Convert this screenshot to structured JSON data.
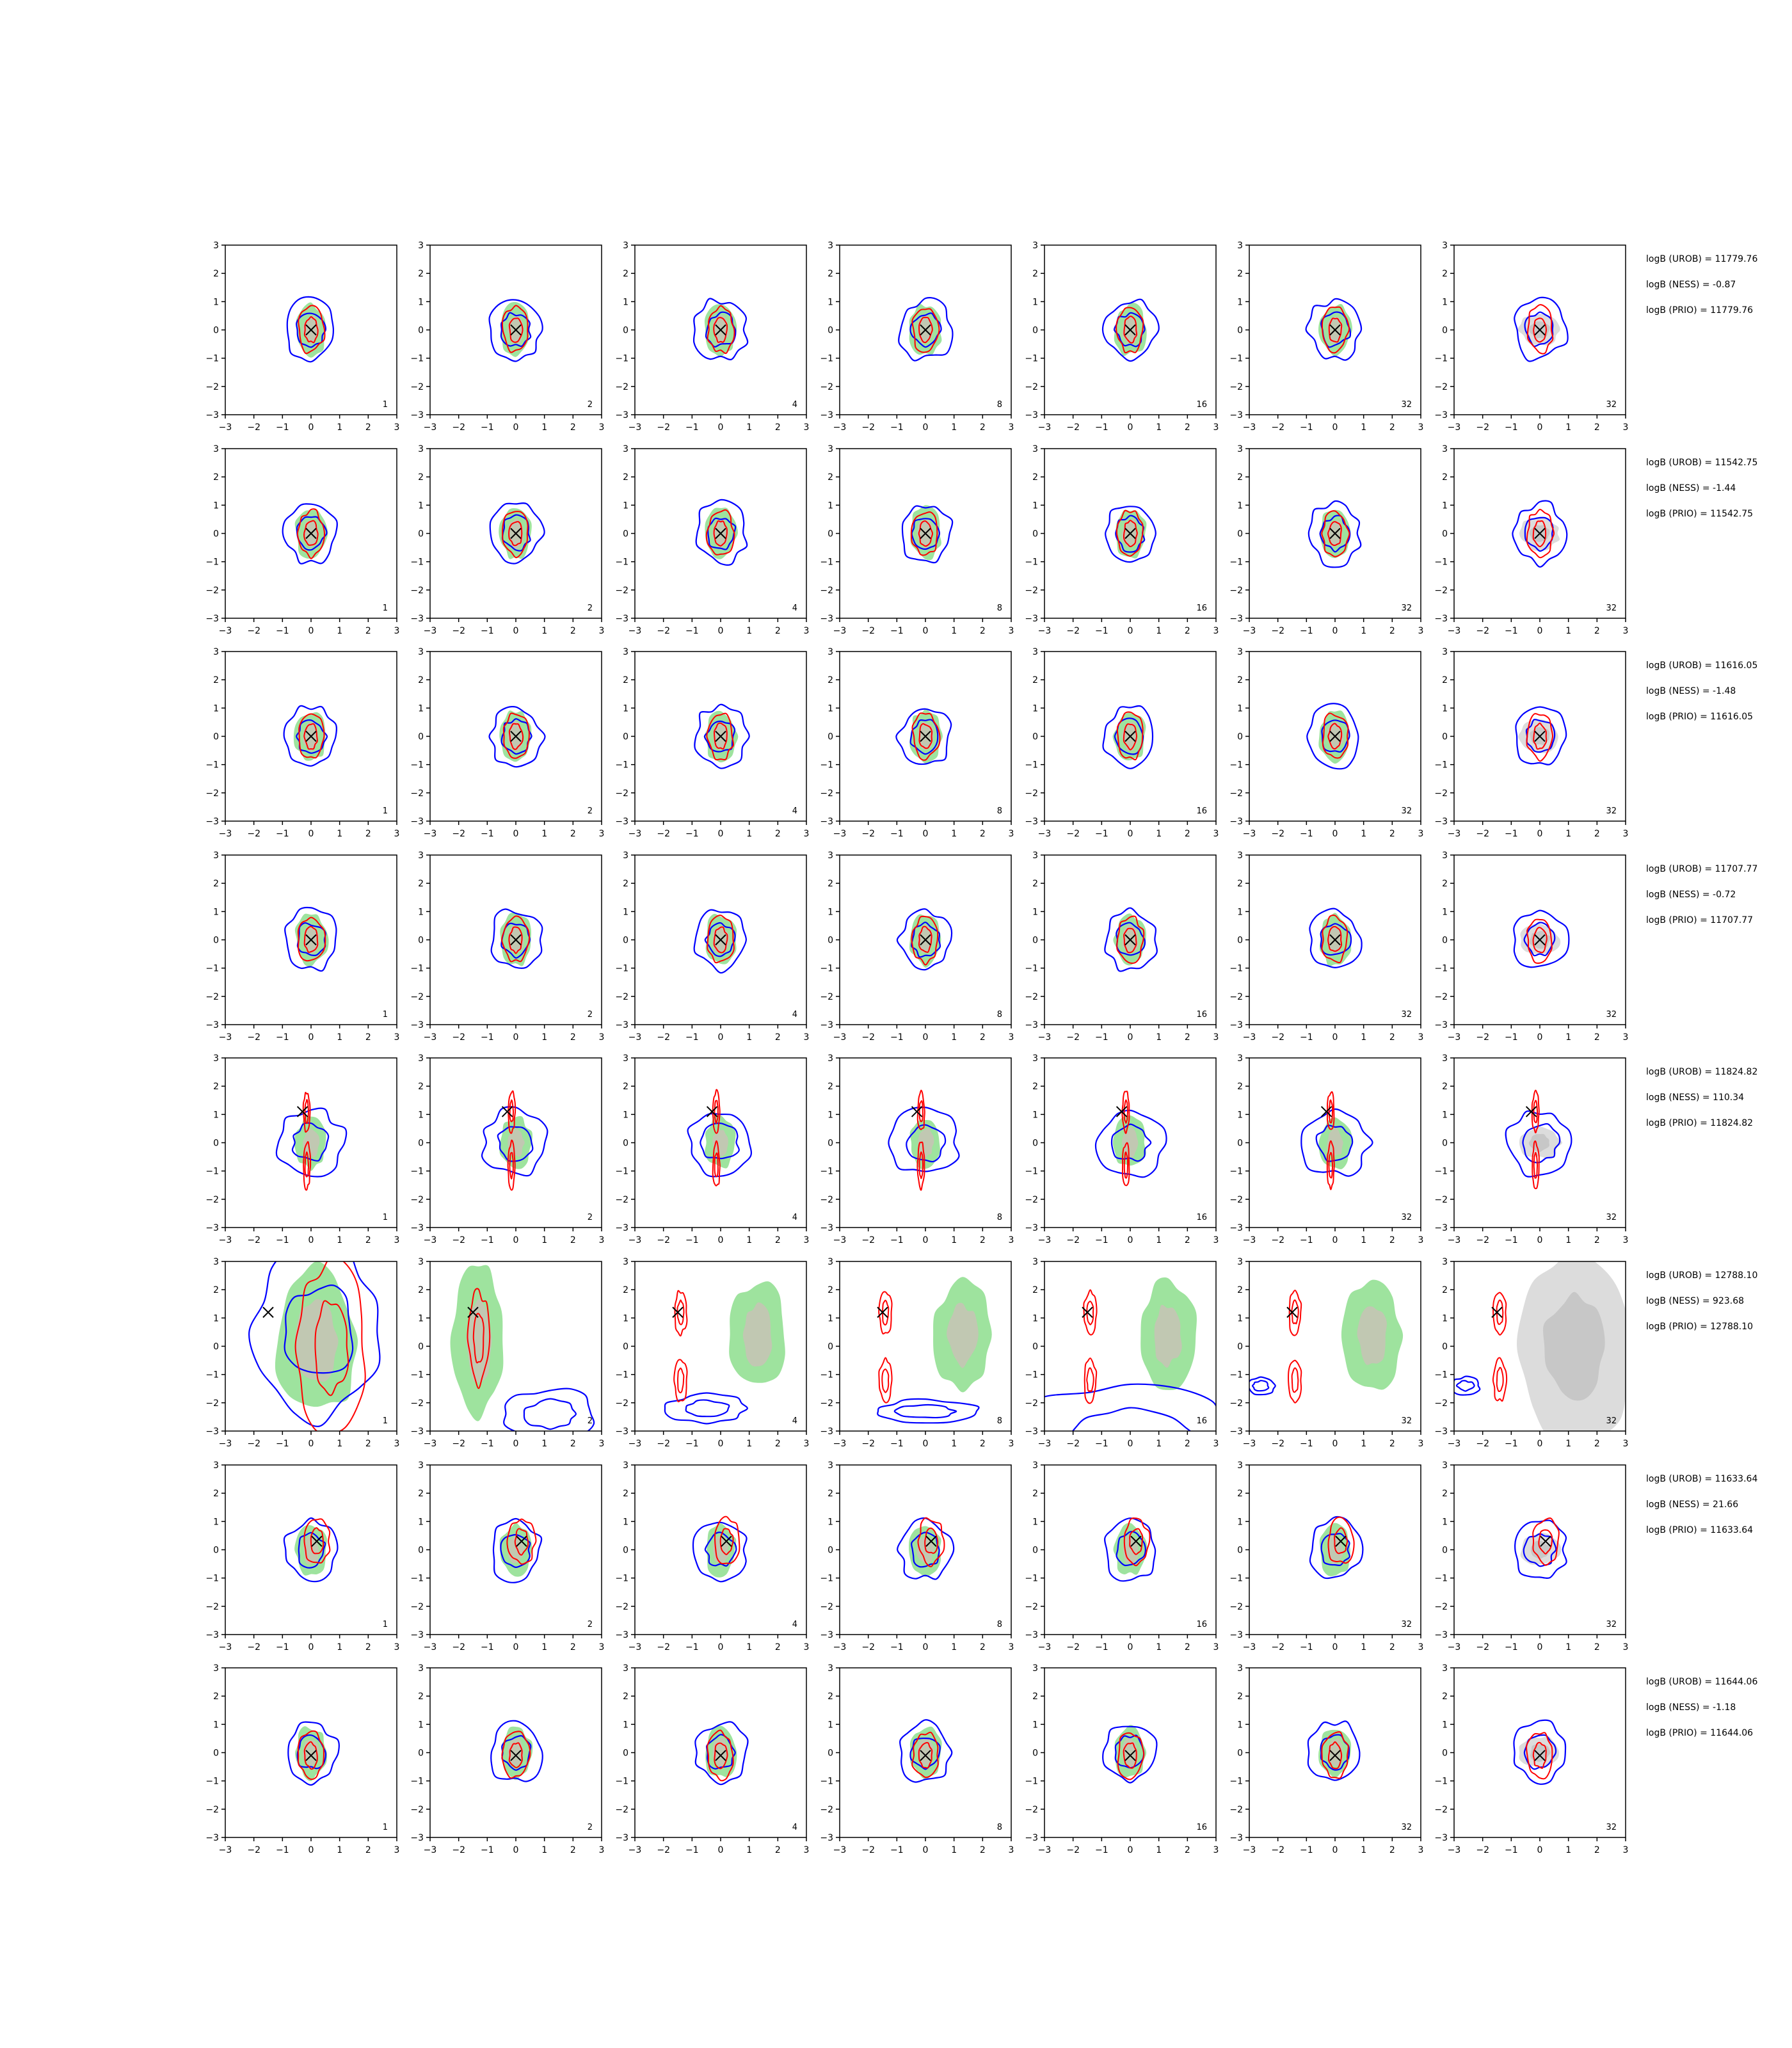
{
  "chart_data": {
    "type": "contour-grid",
    "grid": {
      "rows": 8,
      "cols": 7
    },
    "axis": {
      "xlim": [
        -3,
        3
      ],
      "ylim": [
        -3,
        3
      ],
      "xticks": [
        "−3",
        "−2",
        "−1",
        "0",
        "1",
        "2",
        "3"
      ],
      "yticks": [
        "−3",
        "−2",
        "−1",
        "0",
        "1",
        "2",
        "3"
      ]
    },
    "column_labels": [
      "1",
      "2",
      "4",
      "8",
      "16",
      "32",
      "32"
    ],
    "colors": {
      "reference_fill": "#9ee39e",
      "reference_core": "#c4c4b4",
      "prior_fill": "#dcdcdc",
      "prior_core": "#c4c4c4",
      "blue_contour": "#0000ff",
      "red_contour": "#ff0000",
      "marker": "#000000"
    },
    "rows": [
      {
        "stats": [
          "logB (UROB) = 11779.76",
          "logB (NESS) = -0.87",
          "logB (PRIO) = 11779.76"
        ],
        "marker": [
          0,
          0
        ]
      },
      {
        "stats": [
          "logB (UROB) = 11542.75",
          "logB (NESS) = -1.44",
          "logB (PRIO) = 11542.75"
        ],
        "marker": [
          0,
          0
        ]
      },
      {
        "stats": [
          "logB (UROB) = 11616.05",
          "logB (NESS) = -1.48",
          "logB (PRIO) = 11616.05"
        ],
        "marker": [
          0,
          0
        ]
      },
      {
        "stats": [
          "logB (UROB) = 11707.77",
          "logB (NESS) = -0.72",
          "logB (PRIO) = 11707.77"
        ],
        "marker": [
          0,
          0
        ]
      },
      {
        "stats": [
          "logB (UROB) = 11824.82",
          "logB (NESS) = 110.34",
          "logB (PRIO) = 11824.82"
        ],
        "marker": [
          -0.3,
          1.1
        ]
      },
      {
        "stats": [
          "logB (UROB) = 12788.10",
          "logB (NESS) = 923.68",
          "logB (PRIO) = 12788.10"
        ],
        "marker": [
          -1.5,
          1.2
        ]
      },
      {
        "stats": [
          "logB (UROB) = 11633.64",
          "logB (NESS) = 21.66",
          "logB (PRIO) = 11633.64"
        ],
        "marker": [
          0.2,
          0.3
        ]
      },
      {
        "stats": [
          "logB (UROB) = 11644.06",
          "logB (NESS) = -1.18",
          "logB (PRIO) = 11644.06"
        ],
        "marker": [
          0,
          -0.1
        ]
      }
    ]
  }
}
